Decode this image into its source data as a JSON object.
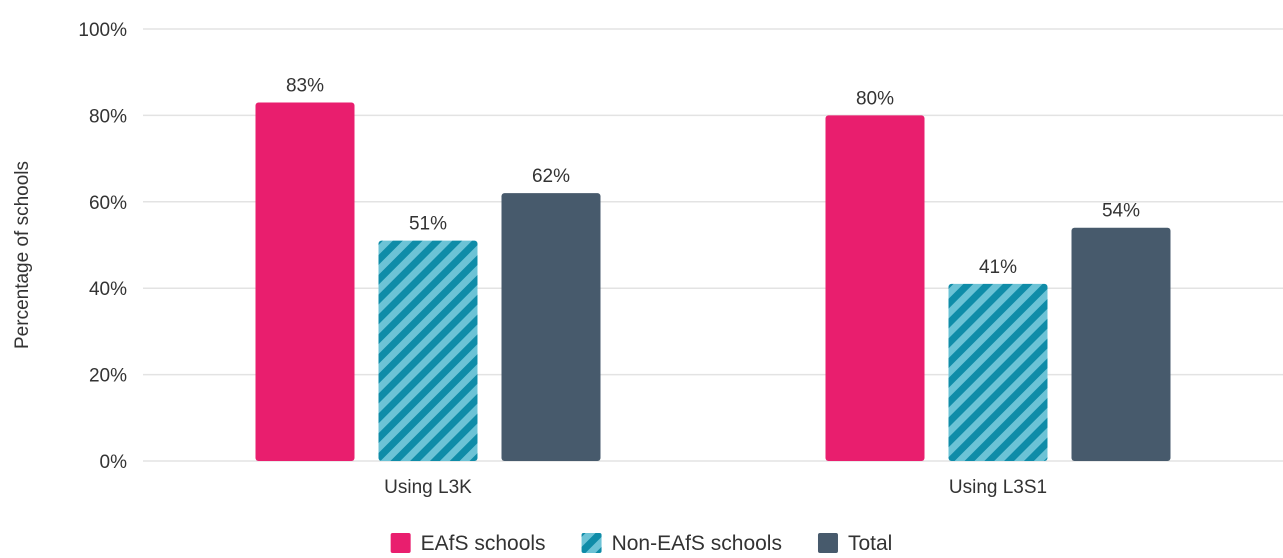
{
  "chart_data": {
    "type": "bar",
    "categories": [
      "Using L3K",
      "Using L3S1"
    ],
    "series": [
      {
        "name": "EAfS schools",
        "values": [
          83,
          80
        ],
        "color": "#e91e6e",
        "pattern": "solid"
      },
      {
        "name": "Non-EAfS schools",
        "values": [
          51,
          41
        ],
        "color": "#1a9bb8",
        "pattern": "diagonal-stripes"
      },
      {
        "name": "Total",
        "values": [
          62,
          54
        ],
        "color": "#475a6c",
        "pattern": "solid"
      }
    ],
    "value_labels": [
      [
        "83%",
        "80%"
      ],
      [
        "51%",
        "41%"
      ],
      [
        "62%",
        "54%"
      ]
    ],
    "ylabel": "Percentage of schools",
    "xlabel": "",
    "ylim": [
      0,
      100
    ],
    "yticks": [
      0,
      20,
      40,
      60,
      80,
      100
    ],
    "ytick_labels": [
      "0%",
      "20%",
      "40%",
      "60%",
      "80%",
      "100%"
    ],
    "grid": true,
    "legend_position": "bottom-center"
  }
}
